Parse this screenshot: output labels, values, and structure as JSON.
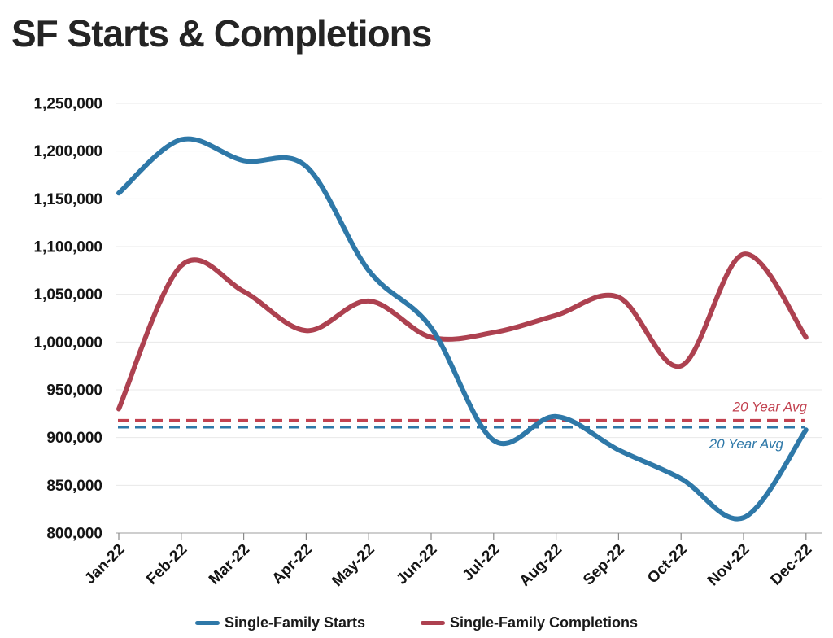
{
  "page": {
    "title": "SF Starts & Completions"
  },
  "chart_data": {
    "type": "line",
    "title": "SF Starts & Completions",
    "categories": [
      "Jan-22",
      "Feb-22",
      "Mar-22",
      "Apr-22",
      "May-22",
      "Jun-22",
      "Jul-22",
      "Aug-22",
      "Sep-22",
      "Oct-22",
      "Nov-22",
      "Dec-22"
    ],
    "series": [
      {
        "name": "Single-Family Starts",
        "color": "#2e78a8",
        "values": [
          1156000,
          1212000,
          1190000,
          1184000,
          1075000,
          1015000,
          897000,
          922000,
          887000,
          857000,
          816000,
          908000
        ]
      },
      {
        "name": "Single-Family Completions",
        "color": "#ad4150",
        "values": [
          930000,
          1080000,
          1053000,
          1012000,
          1043000,
          1005000,
          1010000,
          1028000,
          1047000,
          975000,
          1092000,
          1005000
        ]
      }
    ],
    "reference_lines": [
      {
        "series": "Single-Family Completions",
        "label": "20 Year Avg",
        "value": 918000,
        "color": "#c24250",
        "style": "dashed"
      },
      {
        "series": "Single-Family Starts",
        "label": "20 Year Avg",
        "value": 911000,
        "color": "#2e78a8",
        "style": "dashed"
      }
    ],
    "y_axis": {
      "min": 800000,
      "max": 1250000,
      "tick_step": 50000,
      "tick_labels": [
        "1,250,000",
        "1,200,000",
        "1,150,000",
        "1,100,000",
        "1,050,000",
        "1,000,000",
        "950,000",
        "900,000",
        "850,000",
        "800,000"
      ]
    },
    "grid": "horizontal",
    "legend_position": "bottom"
  },
  "legend": {
    "items": [
      {
        "label": "Single-Family Starts"
      },
      {
        "label": "Single-Family Completions"
      }
    ]
  }
}
